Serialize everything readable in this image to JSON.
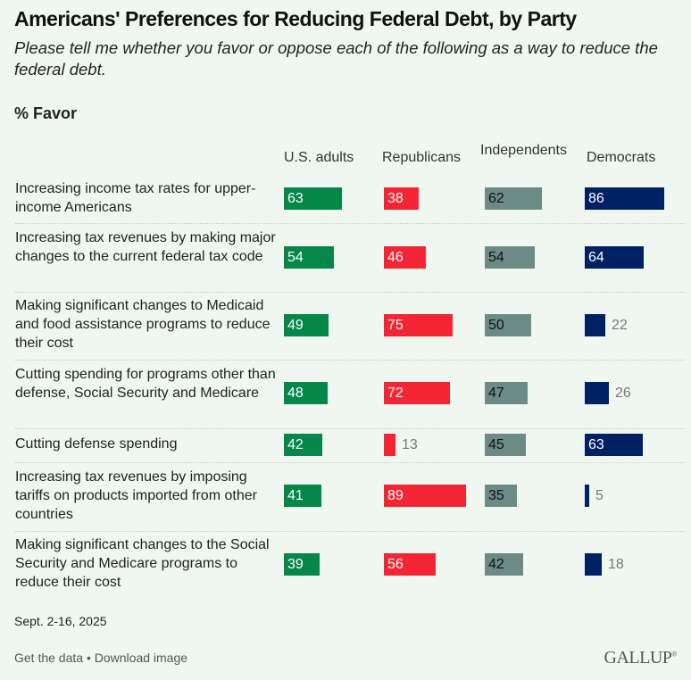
{
  "header": {
    "title": "Americans' Preferences for Reducing Federal Debt, by Party",
    "subtitle": "Please tell me whether you favor or oppose each of the following as a way to reduce the federal debt.",
    "unit_label": "% Favor"
  },
  "footer": {
    "date": "Sept. 2-16, 2025",
    "get_data": "Get the data",
    "bullet": "•",
    "download": "Download image",
    "brand": "GALLUP",
    "brand_mark": "®"
  },
  "colors": {
    "us_adults": "#05874a",
    "republicans": "#f32535",
    "independents": "#6c8b87",
    "democrats": "#002064",
    "outside_label": "#777777"
  },
  "chart_data": {
    "type": "bar",
    "orientation": "horizontal",
    "title": "Americans' Preferences for Reducing Federal Debt, by Party",
    "subtitle": "Please tell me whether you favor or oppose each of the following as a way to reduce the federal debt.",
    "unit": "% Favor",
    "xlim": [
      0,
      100
    ],
    "grid": false,
    "layout": "small-multiples-columns",
    "categories": [
      "Increasing income tax rates for upper-income Americans",
      "Increasing tax revenues by making major changes to the current federal tax code",
      "Making significant changes to Medicaid and food assistance programs to reduce their cost",
      "Cutting spending for programs other than defense, Social Security and Medicare",
      "Cutting defense spending",
      "Increasing tax revenues by imposing tariffs on products imported from other countries",
      "Making significant changes to the Social Security and Medicare programs to reduce their cost"
    ],
    "series": [
      {
        "name": "U.S. adults",
        "key": "us_adults",
        "values": [
          63,
          54,
          49,
          48,
          42,
          41,
          39
        ]
      },
      {
        "name": "Republicans",
        "key": "republicans",
        "values": [
          38,
          46,
          75,
          72,
          13,
          89,
          56
        ]
      },
      {
        "name": "Independents",
        "key": "independents",
        "values": [
          62,
          54,
          50,
          47,
          45,
          35,
          42
        ]
      },
      {
        "name": "Democrats",
        "key": "democrats",
        "values": [
          86,
          64,
          22,
          26,
          63,
          5,
          18
        ]
      }
    ]
  }
}
